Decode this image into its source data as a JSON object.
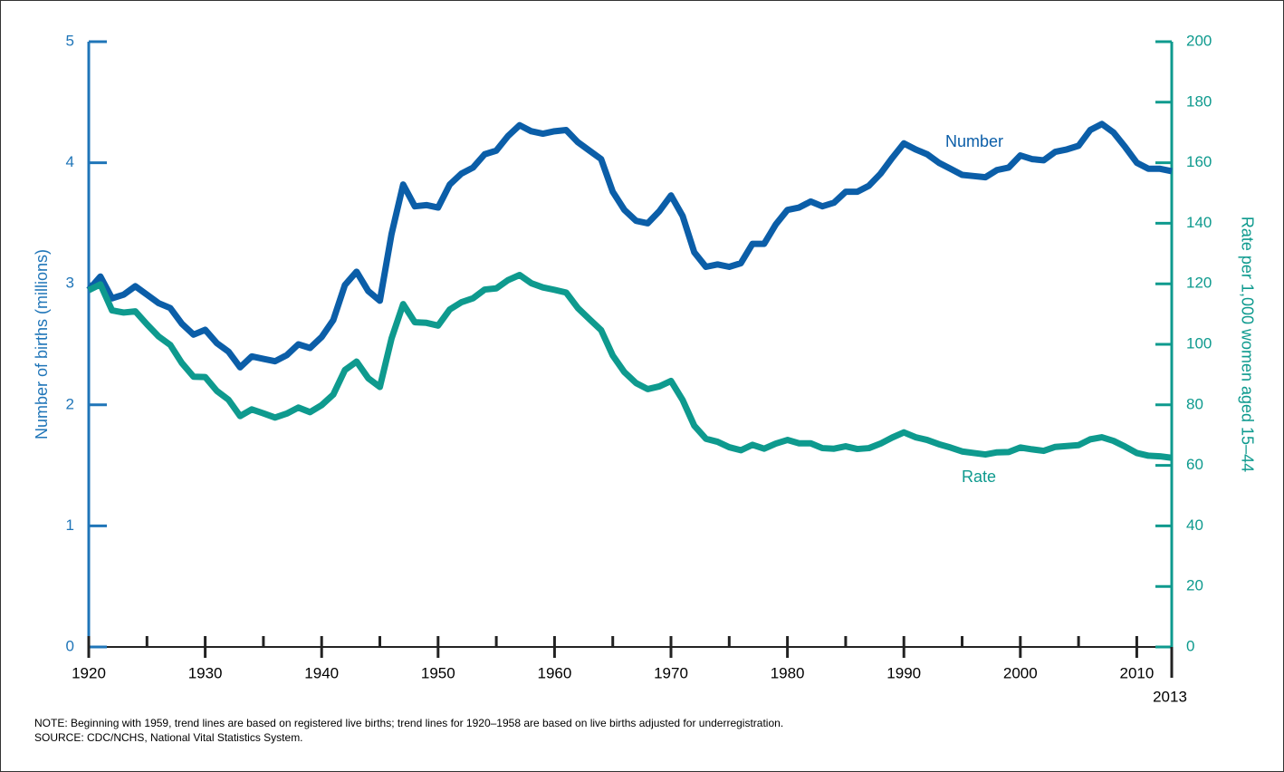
{
  "chart_data": {
    "type": "line",
    "x": [
      1920,
      1921,
      1922,
      1923,
      1924,
      1925,
      1926,
      1927,
      1928,
      1929,
      1930,
      1931,
      1932,
      1933,
      1934,
      1935,
      1936,
      1937,
      1938,
      1939,
      1940,
      1941,
      1942,
      1943,
      1944,
      1945,
      1946,
      1947,
      1948,
      1949,
      1950,
      1951,
      1952,
      1953,
      1954,
      1955,
      1956,
      1957,
      1958,
      1959,
      1960,
      1961,
      1962,
      1963,
      1964,
      1965,
      1966,
      1967,
      1968,
      1969,
      1970,
      1971,
      1972,
      1973,
      1974,
      1975,
      1976,
      1977,
      1978,
      1979,
      1980,
      1981,
      1982,
      1983,
      1984,
      1985,
      1986,
      1987,
      1988,
      1989,
      1990,
      1991,
      1992,
      1993,
      1994,
      1995,
      1996,
      1997,
      1998,
      1999,
      2000,
      2001,
      2002,
      2003,
      2004,
      2005,
      2006,
      2007,
      2008,
      2009,
      2010,
      2011,
      2012,
      2013
    ],
    "series": [
      {
        "name": "Number",
        "color": "#0b5ea8",
        "axis": "y",
        "values": [
          2.95,
          3.06,
          2.88,
          2.91,
          2.98,
          2.91,
          2.84,
          2.8,
          2.67,
          2.58,
          2.62,
          2.51,
          2.44,
          2.31,
          2.4,
          2.38,
          2.36,
          2.41,
          2.5,
          2.47,
          2.56,
          2.7,
          2.99,
          3.1,
          2.94,
          2.86,
          3.41,
          3.82,
          3.64,
          3.65,
          3.63,
          3.82,
          3.91,
          3.96,
          4.07,
          4.1,
          4.22,
          4.31,
          4.26,
          4.24,
          4.26,
          4.27,
          4.17,
          4.1,
          4.03,
          3.76,
          3.61,
          3.52,
          3.5,
          3.6,
          3.73,
          3.56,
          3.26,
          3.14,
          3.16,
          3.14,
          3.17,
          3.33,
          3.33,
          3.49,
          3.61,
          3.63,
          3.68,
          3.64,
          3.67,
          3.76,
          3.76,
          3.81,
          3.91,
          4.04,
          4.16,
          4.11,
          4.07,
          4.0,
          3.95,
          3.9,
          3.89,
          3.88,
          3.94,
          3.96,
          4.06,
          4.03,
          4.02,
          4.09,
          4.11,
          4.14,
          4.27,
          4.32,
          4.25,
          4.13,
          4.0,
          3.95,
          3.95,
          3.93
        ]
      },
      {
        "name": "Rate",
        "color": "#0e9a8e",
        "axis": "y2",
        "values": [
          117.9,
          119.8,
          111.2,
          110.5,
          110.9,
          106.6,
          102.6,
          99.8,
          93.8,
          89.3,
          89.2,
          84.6,
          81.7,
          76.3,
          78.5,
          77.2,
          75.8,
          77.1,
          79.1,
          77.6,
          79.9,
          83.4,
          91.5,
          94.3,
          88.8,
          85.9,
          101.9,
          113.3,
          107.3,
          107.1,
          106.2,
          111.5,
          113.9,
          115.2,
          118.1,
          118.5,
          121.2,
          122.9,
          120.2,
          118.8,
          118.0,
          117.1,
          112.0,
          108.3,
          104.7,
          96.3,
          90.8,
          87.2,
          85.2,
          86.1,
          87.9,
          81.6,
          73.1,
          68.8,
          67.8,
          66.0,
          65.0,
          66.8,
          65.5,
          67.2,
          68.4,
          67.3,
          67.3,
          65.7,
          65.5,
          66.3,
          65.4,
          65.7,
          67.2,
          69.2,
          70.9,
          69.3,
          68.4,
          67.0,
          65.9,
          64.6,
          64.1,
          63.6,
          64.3,
          64.4,
          65.9,
          65.3,
          64.8,
          66.1,
          66.4,
          66.7,
          68.6,
          69.3,
          68.1,
          66.2,
          64.1,
          63.2,
          63.0,
          62.5
        ]
      }
    ],
    "xlim": [
      1920,
      2013
    ],
    "xticks": [
      1920,
      1930,
      1940,
      1950,
      1960,
      1970,
      1980,
      1990,
      2000,
      2010,
      2013
    ],
    "xminor_ticks": [
      1925,
      1935,
      1945,
      1955,
      1965,
      1975,
      1985,
      1995,
      2005
    ],
    "ylim": [
      0,
      5
    ],
    "yticks": [
      0,
      1,
      2,
      3,
      4,
      5
    ],
    "y2lim": [
      0,
      200
    ],
    "y2ticks": [
      0,
      20,
      40,
      60,
      80,
      100,
      120,
      140,
      160,
      180,
      200
    ],
    "ylabel": "Number of births (millions)",
    "y2label": "Rate per 1,000 women aged 15–44",
    "y_color": "#1f75b8",
    "y2_color": "#0e9a8e",
    "notes": [
      "NOTE: Beginning with 1959, trend lines are based on registered live births; trend lines for 1920–1958 are based on live births adjusted for underregistration.",
      "SOURCE: CDC/NCHS, National Vital Statistics System."
    ]
  }
}
